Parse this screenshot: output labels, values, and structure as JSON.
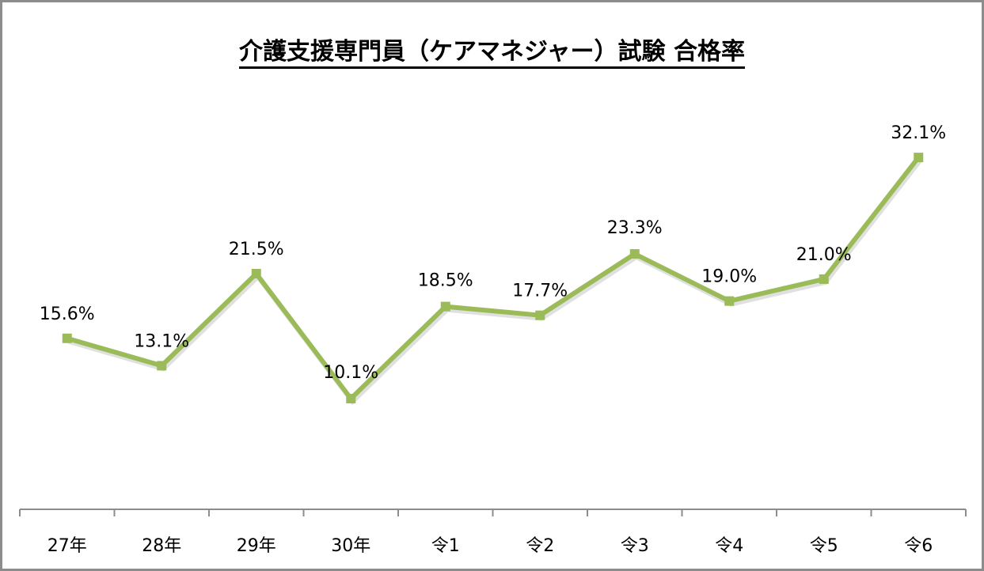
{
  "chart_data": {
    "type": "line",
    "title": "介護支援専門員（ケアマネジャー）試験 合格率",
    "categories": [
      "27年",
      "28年",
      "29年",
      "30年",
      "令1",
      "令2",
      "令3",
      "令4",
      "令5",
      "令6"
    ],
    "series": [
      {
        "name": "合格率",
        "values": [
          15.6,
          13.1,
          21.5,
          10.1,
          18.5,
          17.7,
          23.3,
          19.0,
          21.0,
          32.1
        ],
        "labels": [
          "15.6%",
          "13.1%",
          "21.5%",
          "10.1%",
          "18.5%",
          "17.7%",
          "23.3%",
          "19.0%",
          "21.0%",
          "32.1%"
        ],
        "color": "#9bbb59",
        "marker": "square"
      }
    ],
    "xlabel": "",
    "ylabel": "",
    "ylim": [
      0,
      36
    ],
    "y_axis_visible": false,
    "grid": false,
    "legend": "none",
    "data_labels": true
  },
  "colors": {
    "line": "#9bbb59",
    "frame": "#8c8c8c",
    "axis": "#8c8c8c",
    "text": "#000000"
  }
}
